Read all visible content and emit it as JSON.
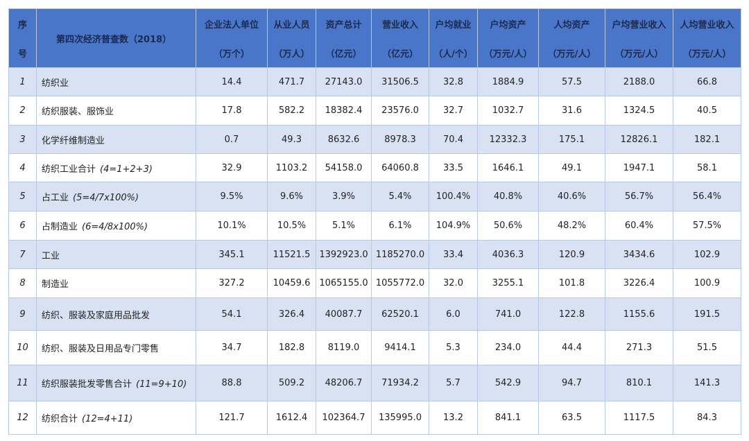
{
  "header": {
    "seq_top": "序",
    "seq_bottom": "号",
    "title": "第四次经济普查数（2018）",
    "columns": [
      {
        "name": "企业法人单位",
        "unit": "（万个）"
      },
      {
        "name": "从业人员",
        "unit": "（万人）"
      },
      {
        "name": "资产总计",
        "unit": "（亿元）"
      },
      {
        "name": "营业收入",
        "unit": "（亿元）"
      },
      {
        "name": "户均就业",
        "unit": "（人/个）"
      },
      {
        "name": "户均资产",
        "unit": "（万元/人）"
      },
      {
        "name": "人均资产",
        "unit": "（万元/人）"
      },
      {
        "name": "户均营业收入",
        "unit": "（万元/人）"
      },
      {
        "name": "人均营业收入",
        "unit": "（万元/人）"
      }
    ]
  },
  "table": {
    "rows": [
      {
        "seq": "1",
        "name": "纺织业",
        "cells": [
          "14.4",
          "471.7",
          "27143.0",
          "31506.5",
          "32.8",
          "1884.9",
          "57.5",
          "2188.0",
          "66.8"
        ]
      },
      {
        "seq": "2",
        "name": "纺织服装、服饰业",
        "cells": [
          "17.8",
          "582.2",
          "18382.4",
          "23576.0",
          "32.7",
          "1032.7",
          "31.6",
          "1324.5",
          "40.5"
        ]
      },
      {
        "seq": "3",
        "name": "化学纤维制造业",
        "cells": [
          "0.7",
          "49.3",
          "8632.6",
          "8978.3",
          "70.4",
          "12332.3",
          "175.1",
          "12826.1",
          "182.1"
        ]
      },
      {
        "seq": "4",
        "name": "纺织工业合计",
        "note": "(4=1+2+3)",
        "cells": [
          "32.9",
          "1103.2",
          "54158.0",
          "64060.8",
          "33.5",
          "1646.1",
          "49.1",
          "1947.1",
          "58.1"
        ]
      },
      {
        "seq": "5",
        "name": "占工业",
        "note": "(5=4/7x100%)",
        "cells": [
          "9.5%",
          "9.6%",
          "3.9%",
          "5.4%",
          "100.4%",
          "40.8%",
          "40.6%",
          "56.7%",
          "56.4%"
        ]
      },
      {
        "seq": "6",
        "name": "占制造业",
        "note": "(6=4/8x100%)",
        "cells": [
          "10.1%",
          "10.5%",
          "5.1%",
          "6.1%",
          "104.9%",
          "50.6%",
          "48.2%",
          "60.4%",
          "57.5%"
        ]
      },
      {
        "seq": "7",
        "name": "工业",
        "cells": [
          "345.1",
          "11521.5",
          "1392923.0",
          "1185270.0",
          "33.4",
          "4036.3",
          "120.9",
          "3434.6",
          "102.9"
        ]
      },
      {
        "seq": "8",
        "name": "制造业",
        "cells": [
          "327.2",
          "10459.6",
          "1065155.0",
          "1055772.0",
          "32.0",
          "3255.1",
          "101.8",
          "3226.4",
          "100.9"
        ]
      },
      {
        "seq": "9",
        "name": "纺织、服装及家庭用品批发",
        "cells": [
          "54.1",
          "326.4",
          "40087.7",
          "62520.1",
          "6.0",
          "741.0",
          "122.8",
          "1155.6",
          "191.5"
        ]
      },
      {
        "seq": "10",
        "name": "纺织、服装及日用品专门零售",
        "cells": [
          "34.7",
          "182.8",
          "8119.0",
          "9414.1",
          "5.3",
          "234.0",
          "44.4",
          "271.3",
          "51.5"
        ]
      },
      {
        "seq": "11",
        "name": "纺织服装批发零售合计",
        "note": "(11=9+10)",
        "cells": [
          "88.8",
          "509.2",
          "48206.7",
          "71934.2",
          "5.7",
          "542.9",
          "94.7",
          "810.1",
          "141.3"
        ]
      },
      {
        "seq": "12",
        "name": "纺织合计",
        "note": "(12=4+11)",
        "cells": [
          "121.7",
          "1612.4",
          "102364.7",
          "135995.0",
          "13.2",
          "841.1",
          "63.5",
          "1117.5",
          "84.3"
        ]
      }
    ]
  }
}
